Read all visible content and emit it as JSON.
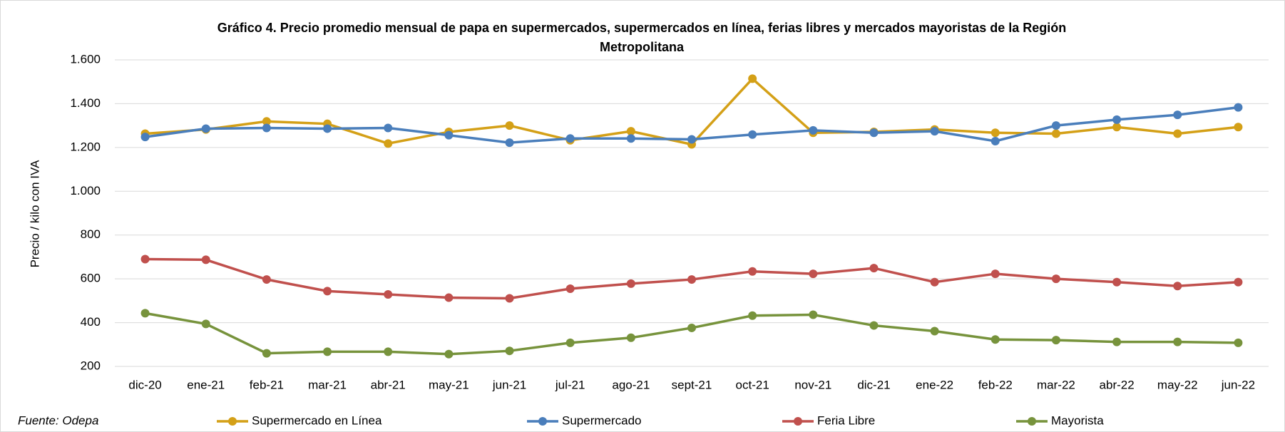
{
  "chart_data": {
    "type": "line",
    "title": "Gráfico 4. Precio promedio mensual de papa en supermercados, supermercados en línea, ferias libres y mercados mayoristas de la Región Metropolitana",
    "ylabel": "Precio / kilo con IVA",
    "source": "Fuente: Odepa",
    "categories": [
      "dic-20",
      "ene-21",
      "feb-21",
      "mar-21",
      "abr-21",
      "may-21",
      "jun-21",
      "jul-21",
      "ago-21",
      "sept-21",
      "oct-21",
      "nov-21",
      "dic-21",
      "ene-22",
      "feb-22",
      "mar-22",
      "abr-22",
      "may-22",
      "jun-22"
    ],
    "ylim": [
      200,
      1600
    ],
    "yticks": [
      200,
      400,
      600,
      800,
      {
        "value": 1000,
        "label": "1.000"
      },
      {
        "value": 1200,
        "label": "1.200"
      },
      {
        "value": 1400,
        "label": "1.400"
      },
      {
        "value": 1600,
        "label": "1.600"
      }
    ],
    "grid": true,
    "legend": "bottom",
    "series": [
      {
        "name": "Supermercado en Línea",
        "color": "#d4a017",
        "values": [
          1263,
          1282,
          1319,
          1308,
          1218,
          1271,
          1300,
          1233,
          1274,
          1214,
          1514,
          1267,
          1271,
          1282,
          1267,
          1263,
          1293,
          1263,
          1293
        ]
      },
      {
        "name": "Supermercado",
        "color": "#4a7ebb",
        "values": [
          1248,
          1286,
          1289,
          1286,
          1289,
          1256,
          1222,
          1241,
          1241,
          1237,
          1259,
          1278,
          1267,
          1274,
          1229,
          1300,
          1327,
          1349,
          1383
        ]
      },
      {
        "name": "Feria Libre",
        "color": "#c0504d",
        "values": [
          690,
          687,
          597,
          544,
          529,
          514,
          511,
          555,
          578,
          597,
          634,
          623,
          649,
          585,
          623,
          600,
          585,
          567,
          585
        ]
      },
      {
        "name": "Mayorista",
        "color": "#77933c",
        "values": [
          443,
          394,
          260,
          267,
          267,
          256,
          271,
          308,
          331,
          376,
          432,
          436,
          387,
          361,
          323,
          320,
          312,
          312,
          308
        ]
      }
    ]
  }
}
